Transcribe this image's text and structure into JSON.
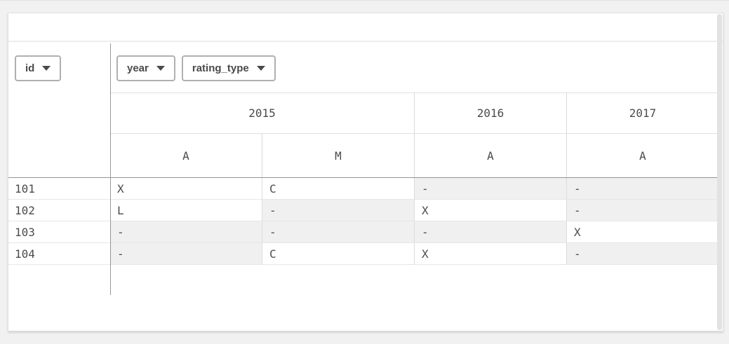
{
  "titlebar": {
    "title": ""
  },
  "pivot": {
    "row_dimension": {
      "label": "id"
    },
    "column_dimensions": [
      {
        "label": "year"
      },
      {
        "label": "rating_type"
      }
    ],
    "year_headers": [
      {
        "label": "2015",
        "colspan": 2
      },
      {
        "label": "2016",
        "colspan": 1
      },
      {
        "label": "2017",
        "colspan": 1
      }
    ],
    "type_headers": {
      "c0": "A",
      "c1": "M",
      "c2": "A",
      "c3": "A"
    },
    "rows": [
      {
        "id": "101",
        "cells": {
          "c0": "X",
          "c1": "C",
          "c2": "-",
          "c3": "-"
        }
      },
      {
        "id": "102",
        "cells": {
          "c0": "L",
          "c1": "-",
          "c2": "X",
          "c3": "-"
        }
      },
      {
        "id": "103",
        "cells": {
          "c0": "-",
          "c1": "-",
          "c2": "-",
          "c3": "X"
        }
      },
      {
        "id": "104",
        "cells": {
          "c0": "-",
          "c1": "C",
          "c2": "X",
          "c3": "-"
        }
      }
    ],
    "null_symbol": "-"
  },
  "colors": {
    "null_cell_bg": "#f0f0f0",
    "divider_dark": "#979797",
    "text": "#4b4b4b",
    "page_bg": "#f1f1f1"
  }
}
